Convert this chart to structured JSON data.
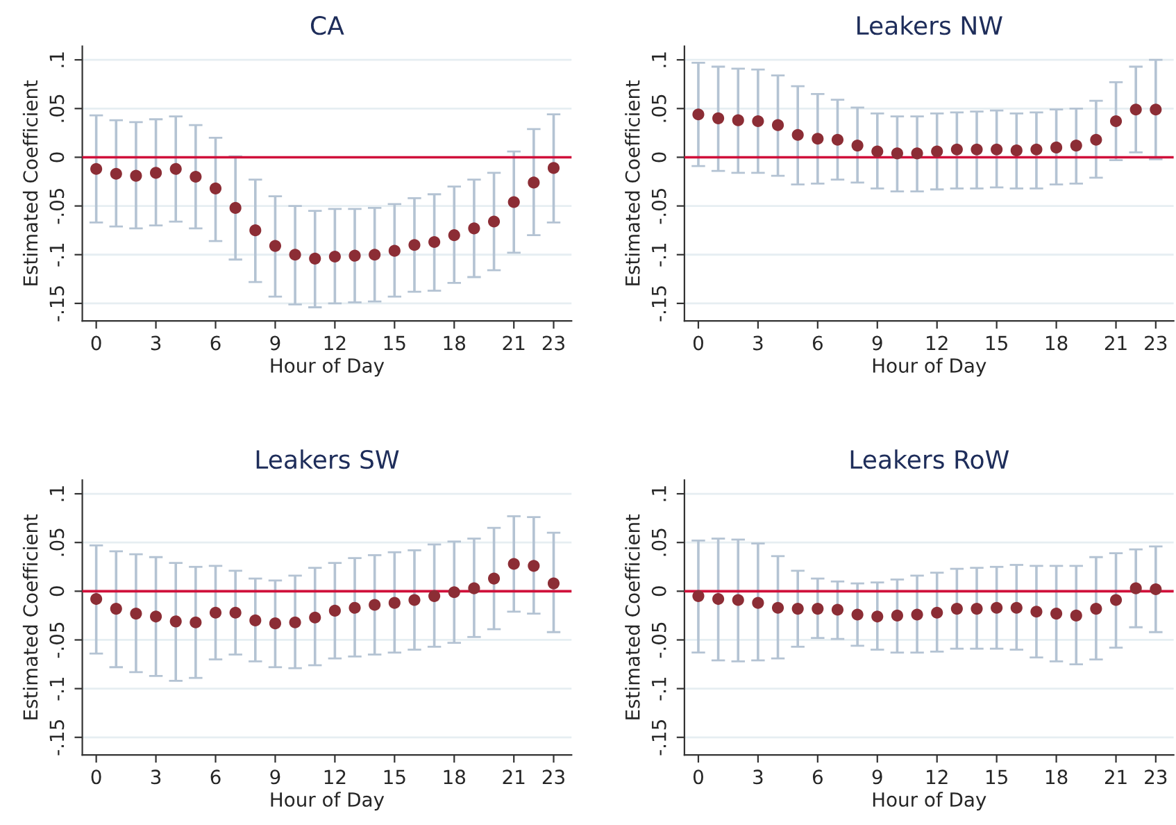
{
  "chart_data": [
    {
      "type": "scatter",
      "title": "CA",
      "xlabel": "Hour of Day",
      "ylabel": "Estimated Coefficient",
      "x": [
        0,
        1,
        2,
        3,
        4,
        5,
        6,
        7,
        8,
        9,
        10,
        11,
        12,
        13,
        14,
        15,
        16,
        17,
        18,
        19,
        20,
        21,
        22,
        23
      ],
      "xlim": [
        -0.7,
        23.9
      ],
      "xticks": [
        0,
        3,
        6,
        9,
        12,
        15,
        18,
        21,
        23
      ],
      "ylim": [
        -0.168,
        0.114
      ],
      "yticks": [
        {
          "value": -0.15,
          "label": "-.15"
        },
        {
          "value": -0.1,
          "label": "-.1"
        },
        {
          "value": -0.05,
          "label": "-.05"
        },
        {
          "value": 0,
          "label": "0"
        },
        {
          "value": 0.05,
          "label": ".05"
        },
        {
          "value": 0.1,
          "label": ".1"
        }
      ],
      "grid": "y",
      "marker": "circle",
      "ref_lines": [
        {
          "axis": "y",
          "value": 0,
          "color": "#d0103a"
        }
      ],
      "series": [
        {
          "color": "#8c2d35",
          "values": [
            -0.012,
            -0.017,
            -0.019,
            -0.016,
            -0.012,
            -0.02,
            -0.032,
            -0.052,
            -0.075,
            -0.091,
            -0.1,
            -0.104,
            -0.102,
            -0.101,
            -0.1,
            -0.096,
            -0.09,
            -0.087,
            -0.08,
            -0.073,
            -0.066,
            -0.046,
            -0.026,
            -0.011
          ],
          "errors": [
            [
              -0.067,
              0.043
            ],
            [
              -0.071,
              0.038
            ],
            [
              -0.073,
              0.036
            ],
            [
              -0.07,
              0.039
            ],
            [
              -0.066,
              0.042
            ],
            [
              -0.073,
              0.033
            ],
            [
              -0.086,
              0.02
            ],
            [
              -0.105,
              0.001
            ],
            [
              -0.128,
              -0.023
            ],
            [
              -0.143,
              -0.04
            ],
            [
              -0.151,
              -0.05
            ],
            [
              -0.154,
              -0.055
            ],
            [
              -0.15,
              -0.053
            ],
            [
              -0.149,
              -0.053
            ],
            [
              -0.148,
              -0.052
            ],
            [
              -0.143,
              -0.048
            ],
            [
              -0.138,
              -0.042
            ],
            [
              -0.137,
              -0.038
            ],
            [
              -0.129,
              -0.03
            ],
            [
              -0.123,
              -0.023
            ],
            [
              -0.116,
              -0.016
            ],
            [
              -0.098,
              0.006
            ],
            [
              -0.08,
              0.029
            ],
            [
              -0.067,
              0.044
            ]
          ]
        }
      ]
    },
    {
      "type": "scatter",
      "title": "Leakers NW",
      "xlabel": "Hour of Day",
      "ylabel": "Estimated Coefficient",
      "x": [
        0,
        1,
        2,
        3,
        4,
        5,
        6,
        7,
        8,
        9,
        10,
        11,
        12,
        13,
        14,
        15,
        16,
        17,
        18,
        19,
        20,
        21,
        22,
        23
      ],
      "xlim": [
        -0.7,
        23.9
      ],
      "xticks": [
        0,
        3,
        6,
        9,
        12,
        15,
        18,
        21,
        23
      ],
      "ylim": [
        -0.168,
        0.114
      ],
      "yticks": [
        {
          "value": -0.15,
          "label": "-.15"
        },
        {
          "value": -0.1,
          "label": "-.1"
        },
        {
          "value": -0.05,
          "label": "-.05"
        },
        {
          "value": 0,
          "label": "0"
        },
        {
          "value": 0.05,
          "label": ".05"
        },
        {
          "value": 0.1,
          "label": ".1"
        }
      ],
      "grid": "y",
      "marker": "circle",
      "ref_lines": [
        {
          "axis": "y",
          "value": 0,
          "color": "#d0103a"
        }
      ],
      "series": [
        {
          "color": "#8c2d35",
          "values": [
            0.044,
            0.04,
            0.038,
            0.037,
            0.033,
            0.023,
            0.019,
            0.018,
            0.012,
            0.006,
            0.004,
            0.004,
            0.006,
            0.008,
            0.008,
            0.008,
            0.007,
            0.008,
            0.01,
            0.012,
            0.018,
            0.037,
            0.049,
            0.049
          ],
          "errors": [
            [
              -0.009,
              0.097
            ],
            [
              -0.014,
              0.093
            ],
            [
              -0.016,
              0.091
            ],
            [
              -0.016,
              0.09
            ],
            [
              -0.019,
              0.084
            ],
            [
              -0.028,
              0.073
            ],
            [
              -0.027,
              0.065
            ],
            [
              -0.023,
              0.059
            ],
            [
              -0.026,
              0.051
            ],
            [
              -0.032,
              0.045
            ],
            [
              -0.035,
              0.042
            ],
            [
              -0.035,
              0.042
            ],
            [
              -0.033,
              0.045
            ],
            [
              -0.032,
              0.046
            ],
            [
              -0.032,
              0.047
            ],
            [
              -0.031,
              0.048
            ],
            [
              -0.032,
              0.045
            ],
            [
              -0.032,
              0.046
            ],
            [
              -0.028,
              0.049
            ],
            [
              -0.027,
              0.05
            ],
            [
              -0.021,
              0.058
            ],
            [
              -0.003,
              0.077
            ],
            [
              0.005,
              0.093
            ],
            [
              -0.002,
              0.1
            ]
          ]
        }
      ]
    },
    {
      "type": "scatter",
      "title": "Leakers SW",
      "xlabel": "Hour of Day",
      "ylabel": "Estimated Coefficient",
      "x": [
        0,
        1,
        2,
        3,
        4,
        5,
        6,
        7,
        8,
        9,
        10,
        11,
        12,
        13,
        14,
        15,
        16,
        17,
        18,
        19,
        20,
        21,
        22,
        23
      ],
      "xlim": [
        -0.7,
        23.9
      ],
      "xticks": [
        0,
        3,
        6,
        9,
        12,
        15,
        18,
        21,
        23
      ],
      "ylim": [
        -0.168,
        0.114
      ],
      "yticks": [
        {
          "value": -0.15,
          "label": "-.15"
        },
        {
          "value": -0.1,
          "label": "-.1"
        },
        {
          "value": -0.05,
          "label": "-.05"
        },
        {
          "value": 0,
          "label": "0"
        },
        {
          "value": 0.05,
          "label": ".05"
        },
        {
          "value": 0.1,
          "label": ".1"
        }
      ],
      "grid": "y",
      "marker": "circle",
      "ref_lines": [
        {
          "axis": "y",
          "value": 0,
          "color": "#d0103a"
        }
      ],
      "series": [
        {
          "color": "#8c2d35",
          "values": [
            -0.008,
            -0.018,
            -0.023,
            -0.026,
            -0.031,
            -0.032,
            -0.022,
            -0.022,
            -0.03,
            -0.033,
            -0.032,
            -0.027,
            -0.02,
            -0.017,
            -0.014,
            -0.012,
            -0.009,
            -0.005,
            -0.001,
            0.003,
            0.013,
            0.028,
            0.026,
            0.008
          ],
          "errors": [
            [
              -0.064,
              0.047
            ],
            [
              -0.078,
              0.041
            ],
            [
              -0.083,
              0.038
            ],
            [
              -0.087,
              0.035
            ],
            [
              -0.092,
              0.029
            ],
            [
              -0.089,
              0.025
            ],
            [
              -0.07,
              0.026
            ],
            [
              -0.065,
              0.021
            ],
            [
              -0.072,
              0.013
            ],
            [
              -0.078,
              0.011
            ],
            [
              -0.079,
              0.016
            ],
            [
              -0.076,
              0.024
            ],
            [
              -0.069,
              0.029
            ],
            [
              -0.067,
              0.034
            ],
            [
              -0.065,
              0.037
            ],
            [
              -0.063,
              0.04
            ],
            [
              -0.06,
              0.042
            ],
            [
              -0.057,
              0.048
            ],
            [
              -0.053,
              0.051
            ],
            [
              -0.047,
              0.054
            ],
            [
              -0.039,
              0.065
            ],
            [
              -0.021,
              0.077
            ],
            [
              -0.023,
              0.076
            ],
            [
              -0.042,
              0.06
            ]
          ]
        }
      ]
    },
    {
      "type": "scatter",
      "title": "Leakers RoW",
      "xlabel": "Hour of Day",
      "ylabel": "Estimated Coefficient",
      "x": [
        0,
        1,
        2,
        3,
        4,
        5,
        6,
        7,
        8,
        9,
        10,
        11,
        12,
        13,
        14,
        15,
        16,
        17,
        18,
        19,
        20,
        21,
        22,
        23
      ],
      "xlim": [
        -0.7,
        23.9
      ],
      "xticks": [
        0,
        3,
        6,
        9,
        12,
        15,
        18,
        21,
        23
      ],
      "ylim": [
        -0.168,
        0.114
      ],
      "yticks": [
        {
          "value": -0.15,
          "label": "-.15"
        },
        {
          "value": -0.1,
          "label": "-.1"
        },
        {
          "value": -0.05,
          "label": "-.05"
        },
        {
          "value": 0,
          "label": "0"
        },
        {
          "value": 0.05,
          "label": ".05"
        },
        {
          "value": 0.1,
          "label": ".1"
        }
      ],
      "grid": "y",
      "marker": "circle",
      "ref_lines": [
        {
          "axis": "y",
          "value": 0,
          "color": "#d0103a"
        }
      ],
      "series": [
        {
          "color": "#8c2d35",
          "values": [
            -0.005,
            -0.008,
            -0.009,
            -0.012,
            -0.017,
            -0.018,
            -0.018,
            -0.019,
            -0.024,
            -0.026,
            -0.025,
            -0.024,
            -0.022,
            -0.018,
            -0.018,
            -0.017,
            -0.017,
            -0.021,
            -0.023,
            -0.025,
            -0.018,
            -0.009,
            0.003,
            0.002
          ],
          "errors": [
            [
              -0.063,
              0.052
            ],
            [
              -0.071,
              0.054
            ],
            [
              -0.072,
              0.053
            ],
            [
              -0.071,
              0.049
            ],
            [
              -0.069,
              0.036
            ],
            [
              -0.057,
              0.021
            ],
            [
              -0.048,
              0.013
            ],
            [
              -0.049,
              0.01
            ],
            [
              -0.056,
              0.008
            ],
            [
              -0.06,
              0.009
            ],
            [
              -0.063,
              0.012
            ],
            [
              -0.063,
              0.016
            ],
            [
              -0.062,
              0.019
            ],
            [
              -0.059,
              0.023
            ],
            [
              -0.059,
              0.024
            ],
            [
              -0.059,
              0.025
            ],
            [
              -0.06,
              0.027
            ],
            [
              -0.068,
              0.026
            ],
            [
              -0.072,
              0.026
            ],
            [
              -0.075,
              0.026
            ],
            [
              -0.07,
              0.035
            ],
            [
              -0.058,
              0.039
            ],
            [
              -0.037,
              0.043
            ],
            [
              -0.042,
              0.046
            ]
          ]
        }
      ]
    }
  ]
}
